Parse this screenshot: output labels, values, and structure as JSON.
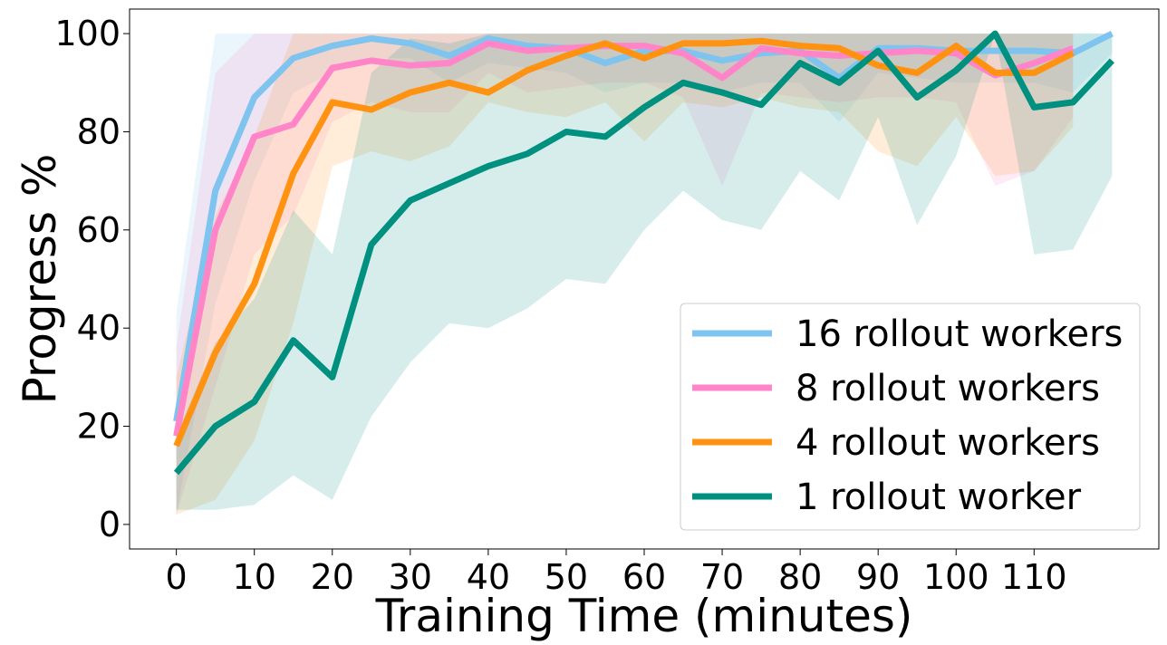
{
  "chart_data": {
    "type": "line",
    "xlabel": "Training Time (minutes)",
    "ylabel": "Progress %",
    "xlim": [
      -6,
      126
    ],
    "ylim": [
      -5,
      105
    ],
    "xticks": [
      0,
      10,
      20,
      30,
      40,
      50,
      60,
      70,
      80,
      90,
      100,
      110
    ],
    "yticks": [
      0,
      20,
      40,
      60,
      80,
      100
    ],
    "grid": false,
    "legend_position": "lower-right",
    "series": [
      {
        "name": "16 rollout workers",
        "color": "#7FC4EE",
        "x": [
          0,
          5,
          10,
          15,
          20,
          25,
          30,
          35,
          40,
          45,
          50,
          55,
          60,
          65,
          70,
          75,
          80,
          85,
          90,
          95,
          100,
          105,
          110,
          115,
          120
        ],
        "y": [
          21,
          68,
          87,
          95,
          97.5,
          99,
          98,
          95.5,
          99,
          97.5,
          97,
          94,
          96.5,
          96.5,
          94.5,
          96,
          96.5,
          91,
          97,
          97,
          96.5,
          96.5,
          96.5,
          96,
          100
        ],
        "lower": [
          2,
          45,
          70,
          88,
          92,
          95,
          95,
          90,
          94,
          93,
          92,
          88,
          90,
          90,
          88,
          90,
          90,
          82,
          92,
          91,
          90,
          90,
          90,
          88,
          96
        ],
        "upper": [
          43,
          100,
          100,
          100,
          100,
          100,
          100,
          100,
          100,
          100,
          100,
          100,
          100,
          100,
          100,
          100,
          100,
          100,
          100,
          100,
          100,
          100,
          100,
          100,
          100
        ]
      },
      {
        "name": "8 rollout workers",
        "color": "#FF85C8",
        "x": [
          0,
          5,
          10,
          15,
          20,
          25,
          30,
          35,
          40,
          45,
          50,
          55,
          60,
          65,
          70,
          75,
          80,
          85,
          90,
          95,
          100,
          105,
          110,
          115
        ],
        "y": [
          18,
          60,
          79,
          81.5,
          93,
          94.5,
          93.5,
          94,
          98,
          96.5,
          97,
          97.5,
          97.5,
          96,
          91,
          97,
          96,
          95.5,
          96,
          96.5,
          96,
          91.5,
          94,
          97
        ],
        "lower": [
          2,
          28,
          55,
          63,
          82,
          86,
          84,
          84,
          92,
          88,
          89,
          90,
          90,
          87,
          69,
          88,
          87,
          86,
          87,
          87,
          86,
          69,
          72,
          83
        ],
        "upper": [
          36,
          92,
          100,
          100,
          100,
          100,
          100,
          100,
          100,
          100,
          100,
          100,
          100,
          100,
          100,
          100,
          100,
          100,
          100,
          100,
          100,
          100,
          100,
          100
        ]
      },
      {
        "name": "4 rollout workers",
        "color": "#FF9210",
        "x": [
          0,
          5,
          10,
          15,
          20,
          25,
          30,
          35,
          40,
          45,
          50,
          55,
          60,
          65,
          70,
          75,
          80,
          85,
          90,
          95,
          100,
          105,
          110,
          115
        ],
        "y": [
          16,
          35,
          49,
          71.5,
          86,
          84.5,
          88,
          90,
          88,
          92.5,
          95.5,
          98,
          95,
          98,
          98,
          98.5,
          97.5,
          97,
          93.5,
          92,
          97.5,
          92,
          92,
          96
        ],
        "lower": [
          2,
          5,
          17,
          41,
          73,
          76,
          74,
          77,
          86,
          84,
          83,
          86,
          78,
          86,
          85,
          87,
          85,
          84,
          76,
          73,
          83,
          71,
          72,
          81
        ],
        "upper": [
          30,
          63,
          79,
          100,
          100,
          100,
          100,
          100,
          100,
          100,
          100,
          100,
          100,
          100,
          100,
          100,
          100,
          100,
          100,
          100,
          100,
          100,
          100,
          100
        ]
      },
      {
        "name": "1 rollout worker",
        "color": "#009080",
        "x": [
          0,
          5,
          10,
          15,
          20,
          25,
          30,
          35,
          40,
          45,
          50,
          55,
          60,
          65,
          70,
          75,
          80,
          85,
          90,
          95,
          100,
          105,
          110,
          115,
          120
        ],
        "y": [
          10.5,
          20,
          25,
          37.5,
          30,
          57,
          66,
          69.5,
          73,
          75.5,
          80,
          79,
          85,
          90,
          88,
          85.5,
          94,
          90,
          96.5,
          87,
          92.5,
          100,
          85,
          86,
          94.5
        ],
        "lower": [
          3,
          3,
          4,
          10,
          5,
          22,
          33,
          41,
          40,
          44,
          50,
          49,
          60,
          68,
          62,
          60,
          72,
          66,
          83,
          61,
          75,
          100,
          55,
          56,
          71
        ],
        "upper": [
          18,
          37,
          46,
          64,
          55,
          92,
          99,
          98,
          100,
          100,
          100,
          100,
          100,
          100,
          100,
          100,
          100,
          100,
          100,
          100,
          100,
          100,
          100,
          100,
          100
        ]
      }
    ]
  }
}
